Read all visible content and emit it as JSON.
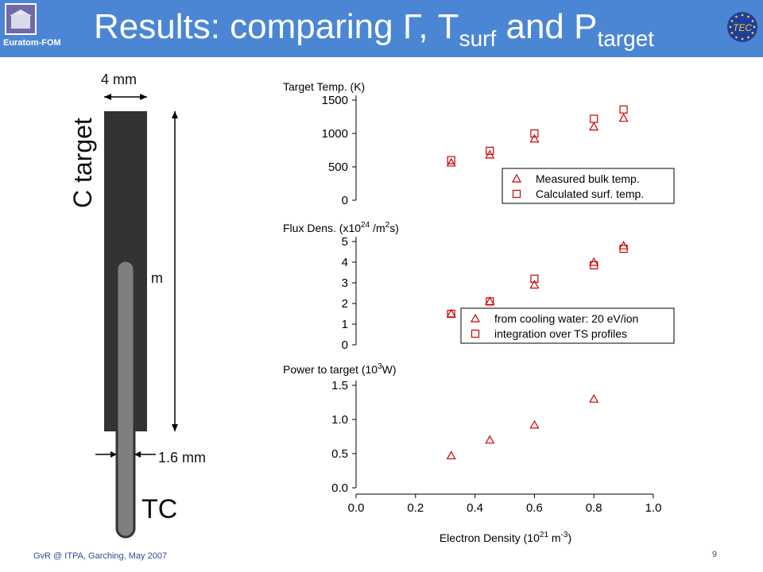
{
  "header": {
    "org_label": "Euratom-FOM",
    "title_main": "Results: comparing Γ, T",
    "title_sub1": "surf",
    "title_mid": " and P",
    "title_sub2": "target",
    "right_logo_text": "TEC",
    "colors": {
      "banner": "#4a86d4",
      "title_text": "#ffffff"
    }
  },
  "diagram": {
    "width_label": "4 mm",
    "target_label": "C target",
    "hidden_length_label": "m",
    "tc_diameter_label": "1.6 mm",
    "tc_label": "TC",
    "colors": {
      "target": "#333333",
      "thermocouple": "#7f7f7f"
    }
  },
  "footer": {
    "text": "GvR @ ITPA, Garching, May 2007",
    "page": "9"
  },
  "chart_data": [
    {
      "type": "scatter",
      "title": "Target Temp. (K)",
      "x_ticks": [],
      "y_ticks": [
        "0",
        "500",
        "1000",
        "1500"
      ],
      "ylim": [
        0,
        1500
      ],
      "xlim": [
        0.0,
        1.0
      ],
      "legend_position": "lower-right",
      "series": [
        {
          "name": "Measured bulk temp.",
          "marker": "triangle",
          "x": [
            0.32,
            0.45,
            0.6,
            0.8,
            0.9
          ],
          "y": [
            560,
            680,
            920,
            1100,
            1230
          ]
        },
        {
          "name": "Calculated surf. temp.",
          "marker": "square",
          "x": [
            0.32,
            0.45,
            0.6,
            0.8,
            0.9
          ],
          "y": [
            600,
            740,
            1000,
            1220,
            1360
          ]
        }
      ]
    },
    {
      "type": "scatter",
      "title": "Flux Dens. (x10",
      "title_sup": "24",
      "title_end": " /m",
      "title_sup2": "2",
      "title_end2": "s)",
      "y_ticks": [
        "0",
        "1",
        "2",
        "3",
        "4",
        "5"
      ],
      "ylim": [
        0,
        5
      ],
      "xlim": [
        0.0,
        1.0
      ],
      "legend_position": "lower-right",
      "series": [
        {
          "name": "from cooling water: 20 eV/ion",
          "marker": "triangle",
          "x": [
            0.32,
            0.45,
            0.6,
            0.8,
            0.9
          ],
          "y": [
            1.5,
            2.1,
            2.9,
            4.0,
            4.8
          ]
        },
        {
          "name": "integration over TS profiles",
          "marker": "square",
          "x": [
            0.32,
            0.45,
            0.6,
            0.8,
            0.9
          ],
          "y": [
            1.5,
            2.1,
            3.2,
            3.85,
            4.65
          ]
        }
      ]
    },
    {
      "type": "scatter",
      "title": "Power to target (10",
      "title_sup": "3",
      "title_end": "W)",
      "y_ticks": [
        "0.0",
        "0.5",
        "1.0",
        "1.5"
      ],
      "x_ticks": [
        "0.0",
        "0.2",
        "0.4",
        "0.6",
        "0.8",
        "1.0"
      ],
      "ylim": [
        0,
        1.5
      ],
      "xlim": [
        0.0,
        1.0
      ],
      "xlabel": "Electron Density (10",
      "xlabel_sup1": "21",
      "xlabel_mid": " m",
      "xlabel_sup2": "-3",
      "xlabel_end": ")",
      "series": [
        {
          "name": "",
          "marker": "triangle",
          "x": [
            0.32,
            0.45,
            0.6,
            0.8
          ],
          "y": [
            0.47,
            0.7,
            0.92,
            1.3
          ]
        }
      ]
    }
  ]
}
